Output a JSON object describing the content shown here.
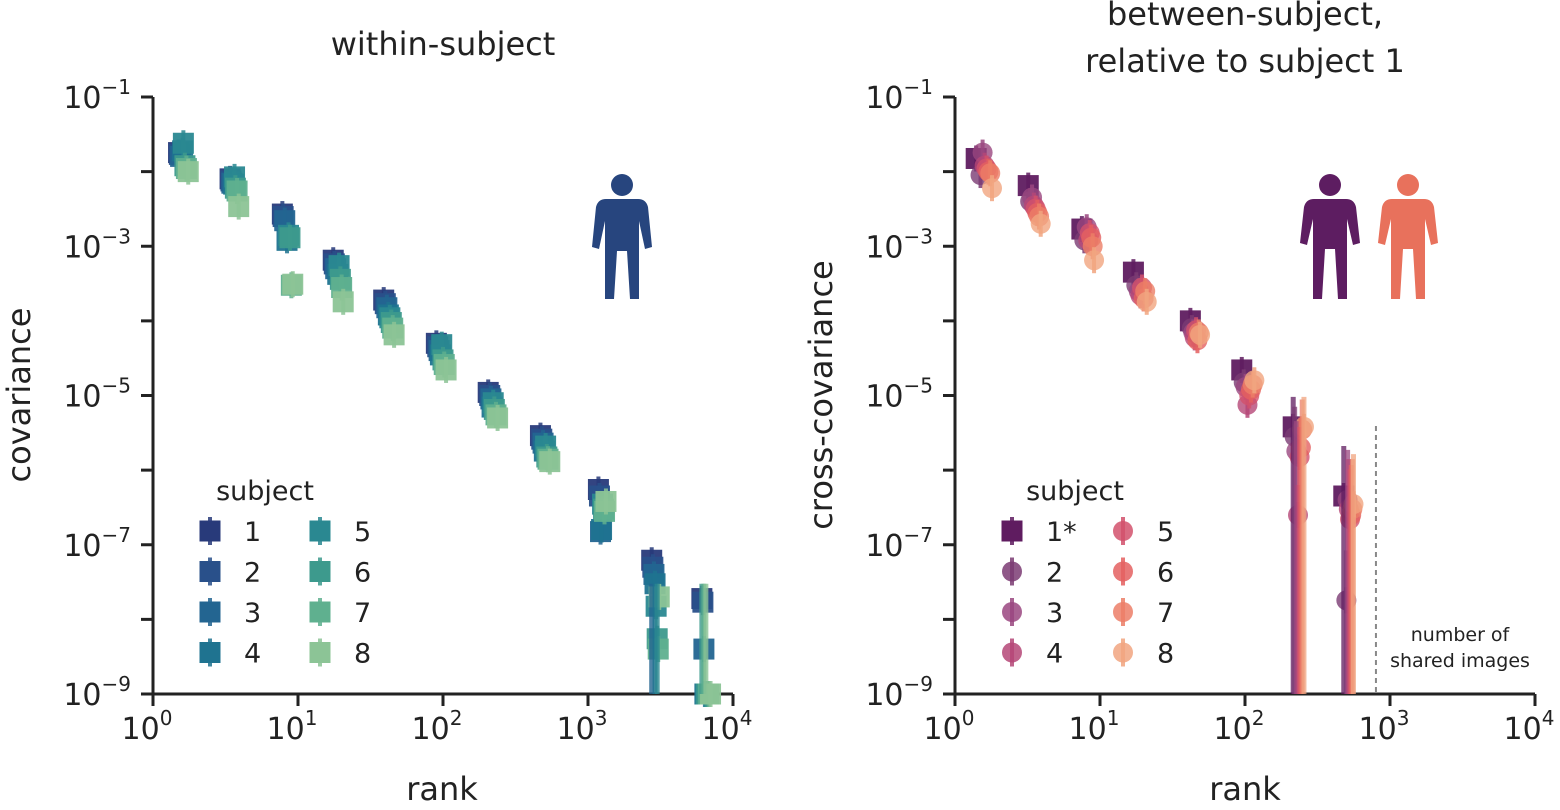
{
  "chart_data": [
    {
      "type": "scatter",
      "title": "within-subject",
      "xlabel": "rank",
      "ylabel": "covariance",
      "xscale": "log",
      "yscale": "log",
      "xlim": [
        1,
        10000
      ],
      "ylim": [
        1e-09,
        0.1
      ],
      "x_ticks": [
        {
          "value": 1,
          "base": "10",
          "exp": "0"
        },
        {
          "value": 10,
          "base": "10",
          "exp": "1"
        },
        {
          "value": 100,
          "base": "10",
          "exp": "2"
        },
        {
          "value": 1000,
          "base": "10",
          "exp": "3"
        },
        {
          "value": 10000,
          "base": "10",
          "exp": "4"
        }
      ],
      "y_ticks": [
        {
          "value": 0.1,
          "base": "10",
          "exp": "−1"
        },
        {
          "value": 0.001,
          "base": "10",
          "exp": "−3"
        },
        {
          "value": 1e-05,
          "base": "10",
          "exp": "−5"
        },
        {
          "value": 1e-07,
          "base": "10",
          "exp": "−7"
        },
        {
          "value": 1e-09,
          "base": "10",
          "exp": "−9"
        }
      ],
      "legend_title": "subject",
      "legend_placement": "lower-left",
      "marker": "square",
      "icon": "person",
      "icon_colors": [
        "#27457e"
      ],
      "series": [
        {
          "name": "1",
          "color": "#283a7a",
          "x": [
            1.5,
            3.4,
            7.8,
            17.5,
            39,
            90,
            205,
            470,
            1180,
            2750,
            6100
          ],
          "y": [
            0.018,
            0.008,
            0.0027,
            0.00065,
            0.00019,
            5e-05,
            1.1e-05,
            2.9e-06,
            5.5e-07,
            6.2e-08,
            1.9e-08
          ]
        },
        {
          "name": "2",
          "color": "#29508a",
          "x": [
            1.52,
            3.45,
            7.9,
            17.8,
            40,
            92,
            210,
            480,
            1200,
            2800,
            6200
          ],
          "y": [
            0.017,
            0.0075,
            0.0025,
            0.00058,
            0.00017,
            4.5e-05,
            1e-05,
            2.6e-06,
            4.5e-07,
            5e-08,
            1.7e-08
          ]
        },
        {
          "name": "3",
          "color": "#236591",
          "x": [
            1.55,
            3.5,
            8.1,
            18.2,
            41,
            94,
            214,
            490,
            1220,
            2850,
            6300
          ],
          "y": [
            0.016,
            0.007,
            0.0022,
            0.0005,
            0.00015,
            4e-05,
            9e-06,
            2.3e-06,
            1.5e-07,
            4e-08,
            4e-09
          ]
        },
        {
          "name": "4",
          "color": "#1f7390",
          "x": [
            1.6,
            3.6,
            8.4,
            18.8,
            42,
            96,
            218,
            500,
            1240,
            2900,
            6400
          ],
          "y": [
            0.019,
            0.0068,
            0.0012,
            0.00042,
            0.00012,
            3.5e-05,
            7e-06,
            1.8e-06,
            1.6e-07,
            3e-08,
            1e-09
          ]
        },
        {
          "name": "5",
          "color": "#2a8891",
          "x": [
            1.62,
            3.65,
            8.6,
            19.2,
            43,
            98,
            222,
            510,
            1260,
            2950,
            6500
          ],
          "y": [
            0.024,
            0.0085,
            0.0014,
            0.00055,
            0.00011,
            4.8e-05,
            8e-06,
            2.1e-06,
            3.5e-07,
            1.5e-08,
            1e-09
          ]
        },
        {
          "name": "6",
          "color": "#3d9a8d",
          "x": [
            1.66,
            3.7,
            8.8,
            19.6,
            44,
            100,
            226,
            520,
            1280,
            3000,
            6600
          ],
          "y": [
            0.012,
            0.006,
            0.0013,
            0.00036,
            9.5e-05,
            3e-05,
            6.5e-06,
            1.5e-06,
            3e-07,
            5.5e-09,
            1e-09
          ]
        },
        {
          "name": "7",
          "color": "#5fb08f",
          "x": [
            1.7,
            3.8,
            9.0,
            20.0,
            45,
            102,
            232,
            530,
            1300,
            3050,
            6800
          ],
          "y": [
            0.011,
            0.0055,
            0.0003,
            0.00028,
            8e-05,
            2.6e-05,
            5.5e-06,
            1.4e-06,
            2.8e-07,
            4e-09,
            1e-09
          ]
        },
        {
          "name": "8",
          "color": "#8cc496",
          "x": [
            1.75,
            3.9,
            9.2,
            20.5,
            46,
            105,
            238,
            545,
            1330,
            3100,
            7000
          ],
          "y": [
            0.01,
            0.0034,
            0.00031,
            0.00018,
            6.5e-05,
            2.2e-05,
            5e-06,
            1.3e-06,
            3.8e-07,
            2e-08,
            1e-09
          ]
        }
      ]
    },
    {
      "type": "scatter",
      "title": "between-subject,",
      "title_line2": "relative to subject 1",
      "xlabel": "rank",
      "ylabel": "cross-covariance",
      "xscale": "log",
      "yscale": "log",
      "xlim": [
        1,
        10000
      ],
      "ylim": [
        1e-09,
        0.1
      ],
      "x_ticks": [
        {
          "value": 1,
          "base": "10",
          "exp": "0"
        },
        {
          "value": 10,
          "base": "10",
          "exp": "1"
        },
        {
          "value": 100,
          "base": "10",
          "exp": "2"
        },
        {
          "value": 1000,
          "base": "10",
          "exp": "3"
        },
        {
          "value": 10000,
          "base": "10",
          "exp": "4"
        }
      ],
      "y_ticks": [
        {
          "value": 0.1,
          "base": "10",
          "exp": "−1"
        },
        {
          "value": 0.001,
          "base": "10",
          "exp": "−3"
        },
        {
          "value": 1e-05,
          "base": "10",
          "exp": "−5"
        },
        {
          "value": 1e-07,
          "base": "10",
          "exp": "−7"
        },
        {
          "value": 1e-09,
          "base": "10",
          "exp": "−9"
        }
      ],
      "legend_title": "subject",
      "legend_placement": "lower-left",
      "annotation": {
        "line1": "number of",
        "line2": "shared images",
        "x": 800
      },
      "icon": "person-pair",
      "icon_colors": [
        "#5d1d61",
        "#e8715c"
      ],
      "series": [
        {
          "name": "1*",
          "marker": "square",
          "color": "#5f1c60",
          "x": [
            1.4,
            3.2,
            7.5,
            17,
            42,
            95,
            215,
            480
          ],
          "y": [
            0.015,
            0.0065,
            0.0017,
            0.00045,
            0.0001,
            2.2e-05,
            3.8e-06,
            4.5e-07
          ]
        },
        {
          "name": "2",
          "marker": "circle",
          "color": "#7b3b73",
          "x": [
            1.5,
            3.3,
            7.8,
            17.8,
            43,
            98,
            220,
            500
          ],
          "y": [
            0.009,
            0.004,
            0.0012,
            0.0003,
            8e-05,
            1.5e-05,
            2.8e-06,
            1.8e-08
          ]
        },
        {
          "name": "3",
          "marker": "circle",
          "color": "#9a4780",
          "x": [
            1.55,
            3.4,
            8.1,
            18.5,
            44,
            101,
            226,
            510
          ],
          "y": [
            0.018,
            0.0045,
            0.0018,
            0.00025,
            7e-05,
            1.3e-05,
            1.8e-06,
            4e-07
          ]
        },
        {
          "name": "4",
          "marker": "circle",
          "color": "#b54777",
          "x": [
            1.6,
            3.5,
            8.3,
            19,
            45,
            104,
            232,
            520
          ],
          "y": [
            0.012,
            0.0035,
            0.0012,
            0.00022,
            6e-05,
            7.5e-06,
            2.5e-07,
            3e-07
          ]
        },
        {
          "name": "5",
          "marker": "circle",
          "color": "#d2516c",
          "x": [
            1.65,
            3.6,
            8.5,
            19.5,
            46,
            107,
            238,
            530
          ],
          "y": [
            0.011,
            0.0032,
            0.0015,
            0.00028,
            7.5e-05,
            1e-05,
            1.5e-06,
            2.2e-07
          ]
        },
        {
          "name": "6",
          "marker": "circle",
          "color": "#e46060",
          "x": [
            1.7,
            3.7,
            8.7,
            20,
            47,
            110,
            243,
            540
          ],
          "y": [
            0.01,
            0.0028,
            0.0013,
            0.0002,
            5.5e-05,
            1.2e-05,
            2e-06,
            2.5e-07
          ]
        },
        {
          "name": "7",
          "marker": "circle",
          "color": "#ec7e67",
          "x": [
            1.75,
            3.8,
            8.9,
            20.5,
            48,
            113,
            248,
            550
          ],
          "y": [
            0.0095,
            0.0025,
            0.001,
            0.00025,
            7e-05,
            1.4e-05,
            3.5e-06,
            3e-07
          ]
        },
        {
          "name": "8",
          "marker": "circle",
          "color": "#f1a580",
          "x": [
            1.8,
            3.9,
            9.1,
            21,
            49,
            116,
            255,
            560
          ],
          "y": [
            0.006,
            0.002,
            0.00065,
            0.00018,
            6.5e-05,
            1.6e-05,
            3.8e-06,
            3.5e-07
          ]
        }
      ]
    }
  ]
}
